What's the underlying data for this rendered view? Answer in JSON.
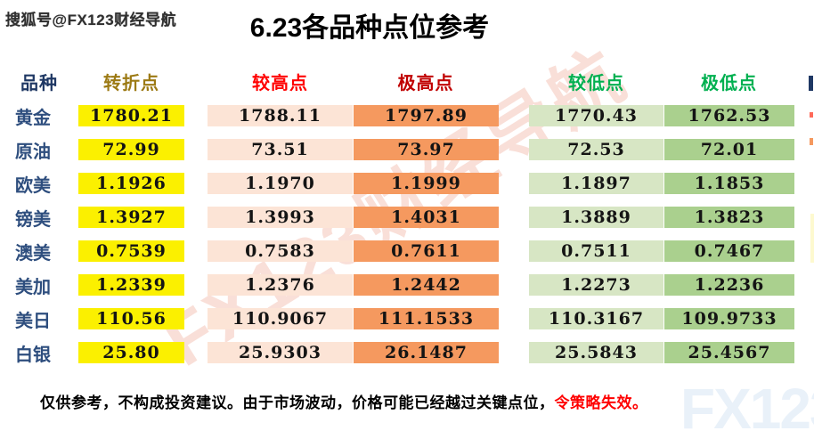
{
  "meta": {
    "source_badge": "搜狐号@FX123财经导航",
    "title": "6.23各品种点位参考"
  },
  "watermarks": {
    "diagonal": "FX123财经导航",
    "corner": "FX123"
  },
  "table": {
    "headers": {
      "product": "品种",
      "pivot": "转折点",
      "high": "较高点",
      "extreme_high": "极高点",
      "low": "较低点",
      "extreme_low": "极低点"
    },
    "rows": [
      {
        "label": "黄金",
        "pivot": "1780.21",
        "high": "1788.11",
        "extreme_high": "1797.89",
        "low": "1770.43",
        "extreme_low": "1762.53"
      },
      {
        "label": "原油",
        "pivot": "72.99",
        "high": "73.51",
        "extreme_high": "73.97",
        "low": "72.53",
        "extreme_low": "72.01"
      },
      {
        "label": "欧美",
        "pivot": "1.1926",
        "high": "1.1970",
        "extreme_high": "1.1999",
        "low": "1.1897",
        "extreme_low": "1.1853"
      },
      {
        "label": "镑美",
        "pivot": "1.3927",
        "high": "1.3993",
        "extreme_high": "1.4031",
        "low": "1.3889",
        "extreme_low": "1.3823"
      },
      {
        "label": "澳美",
        "pivot": "0.7539",
        "high": "0.7583",
        "extreme_high": "0.7611",
        "low": "0.7511",
        "extreme_low": "0.7467"
      },
      {
        "label": "美加",
        "pivot": "1.2339",
        "high": "1.2376",
        "extreme_high": "1.2442",
        "low": "1.2273",
        "extreme_low": "1.2236"
      },
      {
        "label": "美日",
        "pivot": "110.56",
        "high": "110.9067",
        "extreme_high": "111.1533",
        "low": "110.3167",
        "extreme_low": "109.9733"
      },
      {
        "label": "白银",
        "pivot": "25.80",
        "high": "25.9303",
        "extreme_high": "26.1487",
        "low": "25.5843",
        "extreme_low": "25.4567"
      }
    ]
  },
  "footer": {
    "text": "仅供参考，不构成投资建议。由于市场波动，价格可能已经越过关键点位，",
    "highlight": "令策略失效。"
  },
  "colors": {
    "pivot_bg": "#fbf000",
    "high_bg": "#fce4d6",
    "extreme_high_bg": "#f5995f",
    "low_bg": "#d7e6c4",
    "extreme_low_bg": "#aad08e",
    "header_product": "#1f3864",
    "header_pivot": "#9c7a14",
    "header_high": "#ff0000",
    "header_extreme_high": "#c00000",
    "header_low": "#00b050",
    "header_extreme_low": "#00b050",
    "label_text": "#2e4e7e",
    "warning_text": "#ff0000"
  },
  "chart_data": {
    "type": "table",
    "title": "6.23各品种点位参考",
    "columns": [
      "品种",
      "转折点",
      "较高点",
      "极高点",
      "较低点",
      "极低点"
    ],
    "rows": [
      [
        "黄金",
        1780.21,
        1788.11,
        1797.89,
        1770.43,
        1762.53
      ],
      [
        "原油",
        72.99,
        73.51,
        73.97,
        72.53,
        72.01
      ],
      [
        "欧美",
        1.1926,
        1.197,
        1.1999,
        1.1897,
        1.1853
      ],
      [
        "镑美",
        1.3927,
        1.3993,
        1.4031,
        1.3889,
        1.3823
      ],
      [
        "澳美",
        0.7539,
        0.7583,
        0.7611,
        0.7511,
        0.7467
      ],
      [
        "美加",
        1.2339,
        1.2376,
        1.2442,
        1.2273,
        1.2236
      ],
      [
        "美日",
        110.56,
        110.9067,
        111.1533,
        110.3167,
        109.9733
      ],
      [
        "白银",
        25.8,
        25.9303,
        26.1487,
        25.5843,
        25.4567
      ]
    ],
    "notes": "仅供参考，不构成投资建议。由于市场波动，价格可能已经越过关键点位，令策略失效。"
  }
}
